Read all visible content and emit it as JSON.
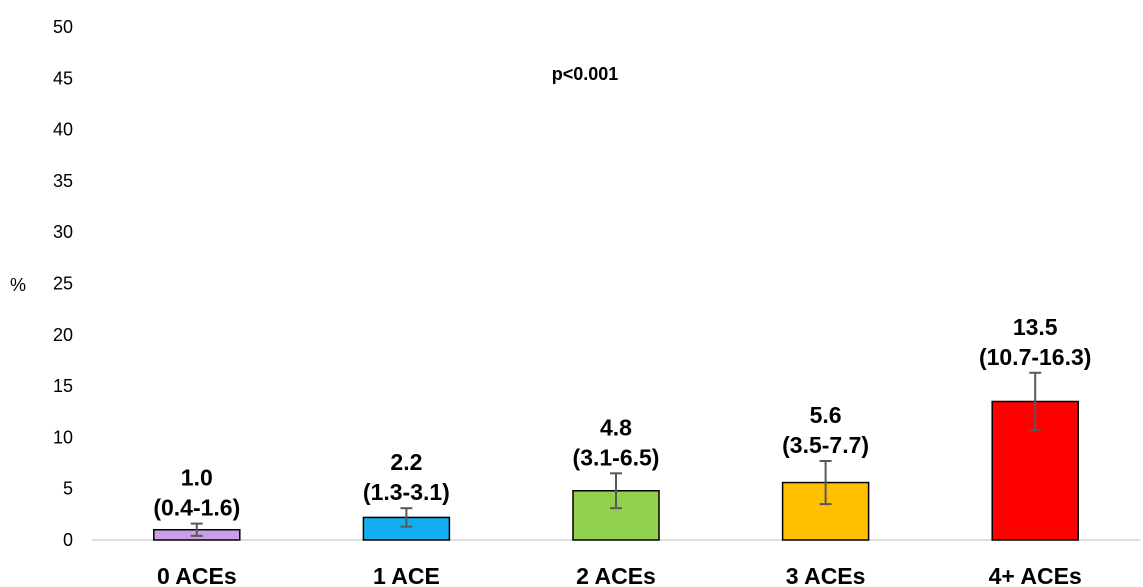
{
  "chart_data": {
    "type": "bar",
    "categories": [
      "0 ACEs",
      "1 ACE",
      "2 ACEs",
      "3 ACEs",
      "4+ ACEs"
    ],
    "values": [
      1.0,
      2.2,
      4.8,
      5.6,
      13.5
    ],
    "error_low": [
      0.4,
      1.3,
      3.1,
      3.5,
      10.7
    ],
    "error_high": [
      1.6,
      3.1,
      6.5,
      7.7,
      16.3
    ],
    "value_labels": [
      "1.0",
      "2.2",
      "4.8",
      "5.6",
      "13.5"
    ],
    "ci_labels": [
      "(0.4-1.6)",
      "(1.3-3.1)",
      "(3.1-6.5)",
      "(3.5-7.7)",
      "(10.7-16.3)"
    ],
    "colors": [
      "#c9a0e8",
      "#12aef0",
      "#92d050",
      "#ffc000",
      "#ff0000"
    ],
    "ylabel": "%",
    "ylim": [
      0,
      50
    ],
    "yticks": [
      "0",
      "5",
      "10",
      "15",
      "20",
      "25",
      "30",
      "35",
      "40",
      "45",
      "50"
    ],
    "annotation": "p<0.001",
    "grid": false
  }
}
